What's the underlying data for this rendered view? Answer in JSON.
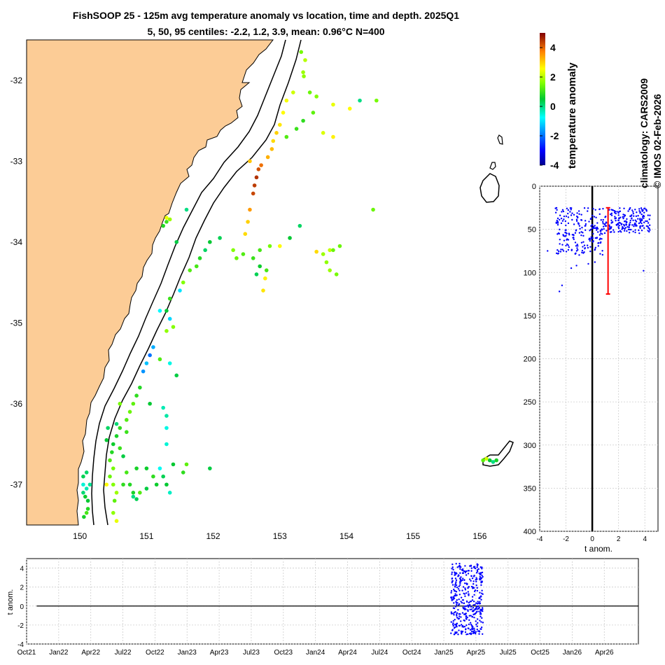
{
  "title_line1": "FishSOOP 25 - 125m avg temperature anomaly vs location, time and depth. 2025Q1",
  "title_line2": "5, 50, 95 centiles: -2.2, 1.2, 3.9, mean: 0.96°C N=400",
  "colorbar": {
    "label": "temperature anomaly",
    "range": [
      -4,
      5
    ],
    "ticks": [
      "-4",
      "-2",
      "0",
      "2",
      "4"
    ]
  },
  "credits": {
    "line1": "climatology: CARS2009",
    "line2": "© IMOS 02-Feb-2026"
  },
  "colors": {
    "land": "#fccc96",
    "points": "#0000ff",
    "median_bar": "#ff0000"
  },
  "chart_data": [
    {
      "type": "scatter",
      "name": "map",
      "xlim": [
        149.2,
        156.5
      ],
      "ylim": [
        -37.5,
        -31.5
      ],
      "xticks": [
        150,
        151,
        152,
        153,
        154,
        155,
        156
      ],
      "yticks": [
        -32,
        -33,
        -34,
        -35,
        -36,
        -37
      ],
      "xtick_labels": [
        "150",
        "151",
        "152",
        "153",
        "154",
        "155",
        "156"
      ],
      "ytick_labels": [
        "-32",
        "-33",
        "-34",
        "-35",
        "-36",
        "-37"
      ],
      "points": [
        [
          153.32,
          -31.65,
          1.5
        ],
        [
          153.38,
          -31.75,
          2.0
        ],
        [
          153.35,
          -31.9,
          1.8
        ],
        [
          153.36,
          -31.95,
          1.7
        ],
        [
          153.2,
          -32.15,
          2.2
        ],
        [
          153.1,
          -32.25,
          2.5
        ],
        [
          153.05,
          -32.4,
          2.6
        ],
        [
          153.0,
          -32.55,
          2.8
        ],
        [
          152.95,
          -32.65,
          3.0
        ],
        [
          152.9,
          -32.75,
          2.9
        ],
        [
          152.88,
          -32.85,
          3.2
        ],
        [
          152.82,
          -32.95,
          3.3
        ],
        [
          152.72,
          -33.05,
          3.9
        ],
        [
          152.68,
          -33.1,
          4.2
        ],
        [
          152.65,
          -33.2,
          4.5
        ],
        [
          152.62,
          -33.3,
          4.4
        ],
        [
          152.6,
          -33.4,
          4.3
        ],
        [
          152.55,
          -33.6,
          3.5
        ],
        [
          152.52,
          -33.75,
          3.0
        ],
        [
          152.48,
          -33.9,
          2.9
        ],
        [
          152.55,
          -33.0,
          3.1
        ],
        [
          153.1,
          -32.7,
          1.2
        ],
        [
          153.25,
          -32.6,
          1.0
        ],
        [
          153.35,
          -32.5,
          0.9
        ],
        [
          153.5,
          -32.4,
          1.3
        ],
        [
          153.55,
          -32.2,
          1.6
        ],
        [
          153.8,
          -32.3,
          2.4
        ],
        [
          153.45,
          -32.15,
          1.4
        ],
        [
          154.2,
          -32.25,
          0.0
        ],
        [
          154.45,
          -32.25,
          1.5
        ],
        [
          154.05,
          -32.35,
          2.6
        ],
        [
          153.65,
          -32.65,
          2.3
        ],
        [
          153.8,
          -32.7,
          2.7
        ],
        [
          154.4,
          -33.6,
          1.4
        ],
        [
          153.3,
          -33.8,
          0.2
        ],
        [
          153.15,
          -33.95,
          0.5
        ],
        [
          153.0,
          -34.05,
          2.6
        ],
        [
          152.85,
          -34.05,
          1.5
        ],
        [
          152.7,
          -34.1,
          1.1
        ],
        [
          152.6,
          -34.2,
          1.0
        ],
        [
          152.45,
          -34.15,
          1.2
        ],
        [
          152.35,
          -34.2,
          1.4
        ],
        [
          152.3,
          -34.1,
          1.6
        ],
        [
          152.7,
          -34.3,
          0.6
        ],
        [
          152.78,
          -34.45,
          2.7
        ],
        [
          152.75,
          -34.6,
          2.8
        ],
        [
          152.8,
          -34.35,
          1.1
        ],
        [
          152.65,
          -34.4,
          0.3
        ],
        [
          153.75,
          -34.1,
          2.1
        ],
        [
          153.55,
          -34.12,
          2.9
        ],
        [
          153.65,
          -34.15,
          1.8
        ],
        [
          153.7,
          -34.25,
          1.7
        ],
        [
          153.75,
          -34.35,
          1.8
        ],
        [
          153.85,
          -34.4,
          1.5
        ],
        [
          153.8,
          -34.1,
          1.4
        ],
        [
          153.9,
          -34.05,
          1.4
        ],
        [
          152.1,
          -33.95,
          0.3
        ],
        [
          151.95,
          -34.0,
          0.5
        ],
        [
          151.88,
          -34.1,
          0.2
        ],
        [
          151.8,
          -34.2,
          0.8
        ],
        [
          151.75,
          -34.3,
          1.1
        ],
        [
          151.65,
          -34.35,
          1.2
        ],
        [
          151.55,
          -34.5,
          1.6
        ],
        [
          151.5,
          -34.6,
          -1.0
        ],
        [
          151.35,
          -34.7,
          1.0
        ],
        [
          151.3,
          -34.85,
          0.5
        ],
        [
          151.6,
          -33.6,
          0.0
        ],
        [
          151.3,
          -33.7,
          2.4
        ],
        [
          151.35,
          -33.72,
          1.8
        ],
        [
          151.3,
          -33.75,
          1.0
        ],
        [
          151.25,
          -33.8,
          0.8
        ],
        [
          151.45,
          -34.0,
          0.4
        ],
        [
          151.2,
          -34.85,
          -0.8
        ],
        [
          151.35,
          -34.95,
          -1.1
        ],
        [
          151.4,
          -35.05,
          1.6
        ],
        [
          151.3,
          -35.1,
          1.7
        ],
        [
          151.1,
          -35.3,
          -1.5
        ],
        [
          151.05,
          -35.4,
          -2.0
        ],
        [
          151.0,
          -35.5,
          -1.3
        ],
        [
          150.95,
          -35.6,
          -1.7
        ],
        [
          151.2,
          -35.45,
          1.2
        ],
        [
          151.35,
          -35.5,
          -0.6
        ],
        [
          151.45,
          -35.65,
          0.4
        ],
        [
          150.9,
          -35.8,
          0.8
        ],
        [
          150.85,
          -35.9,
          0.9
        ],
        [
          150.8,
          -36.0,
          1.3
        ],
        [
          150.75,
          -36.1,
          1.4
        ],
        [
          150.7,
          -36.2,
          1.2
        ],
        [
          150.6,
          -36.3,
          0.9
        ],
        [
          150.55,
          -36.4,
          0.7
        ],
        [
          150.5,
          -36.5,
          0.6
        ],
        [
          150.48,
          -36.6,
          0.8
        ],
        [
          150.45,
          -36.7,
          1.2
        ],
        [
          150.5,
          -36.8,
          1.5
        ],
        [
          150.45,
          -36.9,
          1.4
        ],
        [
          150.5,
          -37.0,
          1.6
        ],
        [
          150.55,
          -37.1,
          1.8
        ],
        [
          150.52,
          -37.2,
          1.3
        ],
        [
          150.5,
          -37.35,
          1.7
        ],
        [
          150.55,
          -37.45,
          2.4
        ],
        [
          150.42,
          -36.3,
          0.2
        ],
        [
          150.4,
          -36.45,
          0.5
        ],
        [
          150.4,
          -37.0,
          2.6
        ],
        [
          150.6,
          -36.55,
          1.0
        ],
        [
          150.65,
          -36.65,
          0.4
        ],
        [
          150.55,
          -36.25,
          0.1
        ],
        [
          150.6,
          -36.0,
          1.5
        ],
        [
          150.7,
          -36.35,
          1.0
        ],
        [
          151.05,
          -36.0,
          0.5
        ],
        [
          151.25,
          -36.05,
          -0.3
        ],
        [
          151.3,
          -36.15,
          -0.2
        ],
        [
          151.3,
          -36.3,
          -0.6
        ],
        [
          151.3,
          -36.5,
          -0.5
        ],
        [
          151.6,
          -36.75,
          1.3
        ],
        [
          151.95,
          -36.8,
          0.4
        ],
        [
          151.55,
          -36.85,
          0.9
        ],
        [
          151.4,
          -36.75,
          0.5
        ],
        [
          151.2,
          -36.8,
          -0.7
        ],
        [
          151.25,
          -36.9,
          0.3
        ],
        [
          151.3,
          -37.0,
          0.5
        ],
        [
          151.35,
          -37.1,
          -0.4
        ],
        [
          151.1,
          -36.9,
          0.9
        ],
        [
          151.0,
          -36.8,
          0.6
        ],
        [
          150.85,
          -36.8,
          0.7
        ],
        [
          150.7,
          -36.85,
          1.1
        ],
        [
          150.75,
          -37.0,
          0.8
        ],
        [
          150.8,
          -37.1,
          0.7
        ],
        [
          150.9,
          -37.1,
          1.2
        ],
        [
          151.0,
          -37.05,
          0.4
        ],
        [
          151.15,
          -37.0,
          0.6
        ],
        [
          150.65,
          -37.0,
          0.9
        ],
        [
          150.8,
          -37.15,
          0.0
        ],
        [
          150.85,
          -37.18,
          0.3
        ],
        [
          150.05,
          -36.9,
          0.3
        ],
        [
          150.1,
          -36.85,
          0.2
        ],
        [
          150.05,
          -37.0,
          -0.5
        ],
        [
          150.1,
          -37.05,
          -0.3
        ],
        [
          150.08,
          -37.15,
          0.6
        ],
        [
          150.12,
          -37.2,
          0.5
        ],
        [
          150.05,
          -37.1,
          0.1
        ],
        [
          150.1,
          -37.35,
          1.1
        ],
        [
          150.06,
          -37.4,
          0.7
        ],
        [
          150.15,
          -37.0,
          -0.1
        ],
        [
          150.12,
          -37.3,
          0.8
        ],
        [
          156.05,
          -36.7,
          1.3
        ],
        [
          156.15,
          -36.7,
          0.5
        ],
        [
          156.2,
          -36.72,
          0.0
        ],
        [
          156.25,
          -36.7,
          0.7
        ],
        [
          156.1,
          -36.68,
          2.2
        ]
      ]
    },
    {
      "type": "scatter",
      "name": "depth_profile",
      "xlabel": "t anom.",
      "xlim": [
        -4,
        5
      ],
      "ylim": [
        0,
        400
      ],
      "xticks": [
        -4,
        -2,
        0,
        2,
        4
      ],
      "yticks": [
        0,
        50,
        100,
        150,
        200,
        250,
        300,
        350,
        400
      ],
      "xtick_labels": [
        "-4",
        "-2",
        "0",
        "2",
        "4"
      ],
      "ytick_labels": [
        "0",
        "50",
        "100",
        "150",
        "200",
        "250",
        "300",
        "350",
        "400"
      ],
      "median_bar": {
        "x": 1.2,
        "y_top": 25,
        "y_bottom": 125
      },
      "extra_points": [
        [
          -2.5,
          122
        ],
        [
          -2.3,
          115
        ],
        [
          -1.6,
          95
        ],
        [
          -1.2,
          92
        ],
        [
          -3.4,
          75
        ],
        [
          3.9,
          98
        ],
        [
          -0.3,
          90
        ],
        [
          0.2,
          88
        ]
      ]
    },
    {
      "type": "scatter",
      "name": "time_series",
      "ylabel": "t anom.",
      "xlim": [
        0,
        61
      ],
      "ylim": [
        -4,
        5
      ],
      "yticks": [
        -4,
        -2,
        0,
        2,
        4
      ],
      "ytick_labels": [
        "-4",
        "-2",
        "0",
        "2",
        "4"
      ],
      "x_tick_labels": [
        "Oct21",
        "Jan22",
        "Apr22",
        "Jul22",
        "Oct22",
        "Jan23",
        "Apr23",
        "Jul23",
        "Oct23",
        "Jan24",
        "Apr24",
        "Jul24",
        "Oct24",
        "Jan25",
        "Apr25",
        "Jul25",
        "Oct25",
        "Jan26",
        "Apr26"
      ],
      "data_window_months": [
        42.3,
        45.5
      ]
    }
  ]
}
